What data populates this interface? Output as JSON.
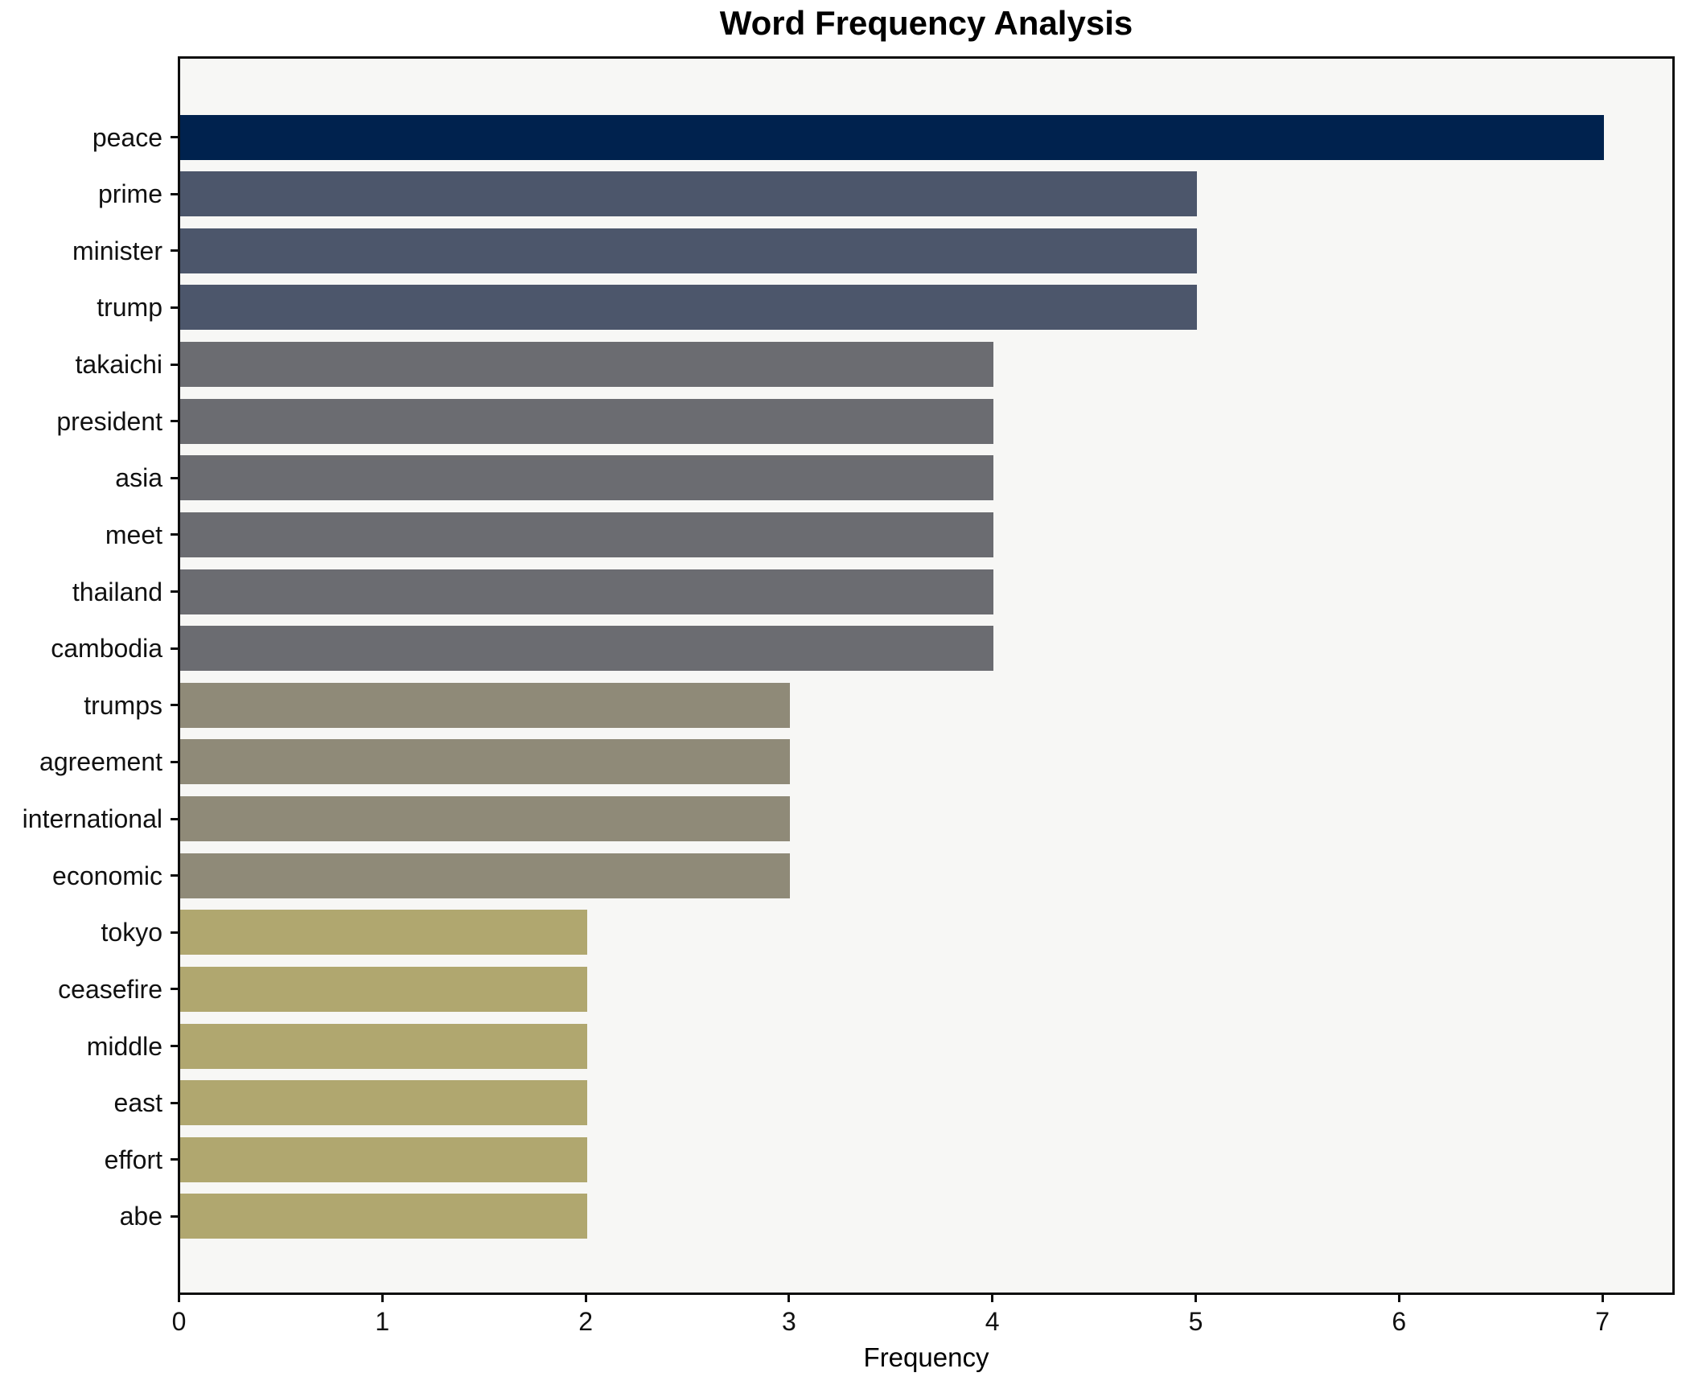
{
  "title": "Word Frequency Analysis",
  "chart_data": {
    "type": "bar",
    "orientation": "horizontal",
    "title": "Word Frequency Analysis",
    "xlabel": "Frequency",
    "ylabel": "",
    "categories": [
      "peace",
      "prime",
      "minister",
      "trump",
      "takaichi",
      "president",
      "asia",
      "meet",
      "thailand",
      "cambodia",
      "trumps",
      "agreement",
      "international",
      "economic",
      "tokyo",
      "ceasefire",
      "middle",
      "east",
      "effort",
      "abe"
    ],
    "values": [
      7,
      5,
      5,
      5,
      4,
      4,
      4,
      4,
      4,
      4,
      3,
      3,
      3,
      3,
      2,
      2,
      2,
      2,
      2,
      2
    ],
    "bar_colors": [
      "#00224e",
      "#4c566b",
      "#4c566b",
      "#4c566b",
      "#6b6c71",
      "#6b6c71",
      "#6b6c71",
      "#6b6c71",
      "#6b6c71",
      "#6b6c71",
      "#8f8a78",
      "#8f8a78",
      "#8f8a78",
      "#8f8a78",
      "#b0a76f",
      "#b0a76f",
      "#b0a76f",
      "#b0a76f",
      "#b0a76f",
      "#b0a76f"
    ],
    "value_color_map": {
      "7": "#00224e",
      "5": "#4c566b",
      "4": "#6b6c71",
      "3": "#8f8a78",
      "2": "#b0a76f"
    },
    "xticks": [
      0,
      1,
      2,
      3,
      4,
      5,
      6,
      7
    ],
    "xlim": [
      0,
      7.34
    ],
    "grid": false,
    "legend": null,
    "plot_background": "#f7f7f5",
    "figure_background": "#ffffff",
    "spine_color": "#0d0d0d"
  }
}
